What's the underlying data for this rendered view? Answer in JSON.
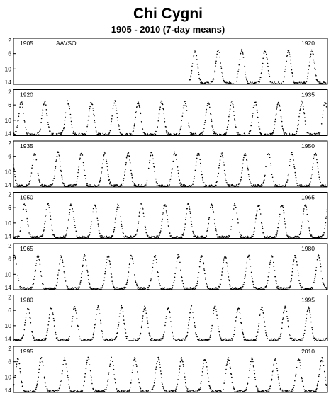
{
  "chart_data": {
    "type": "scatter",
    "title": "Chi Cygni",
    "subtitle": "1905 - 2010 (7-day means)",
    "source": "AAVSO",
    "y_ticks": [
      2,
      6,
      10,
      14
    ],
    "ylim_inverted": [
      2,
      14
    ],
    "period_days": 408,
    "min_mag": 13.8,
    "max_mag": 5.2,
    "grid": false,
    "panels": [
      {
        "x_start": 1905,
        "x_end": 1920,
        "labels": [
          "1905",
          "1920"
        ],
        "data_from": 1913.4
      },
      {
        "x_start": 1920,
        "x_end": 1935,
        "labels": [
          "1920",
          "1935"
        ],
        "data_from": 1920
      },
      {
        "x_start": 1935,
        "x_end": 1950,
        "labels": [
          "1935",
          "1950"
        ],
        "data_from": 1935
      },
      {
        "x_start": 1950,
        "x_end": 1965,
        "labels": [
          "1950",
          "1965"
        ],
        "data_from": 1950
      },
      {
        "x_start": 1965,
        "x_end": 1980,
        "labels": [
          "1965",
          "1980"
        ],
        "data_from": 1965
      },
      {
        "x_start": 1980,
        "x_end": 1995,
        "labels": [
          "1980",
          "1995"
        ],
        "data_from": 1980
      },
      {
        "x_start": 1995,
        "x_end": 2010,
        "labels": [
          "1995",
          "2010"
        ],
        "data_from": 1995
      }
    ]
  }
}
